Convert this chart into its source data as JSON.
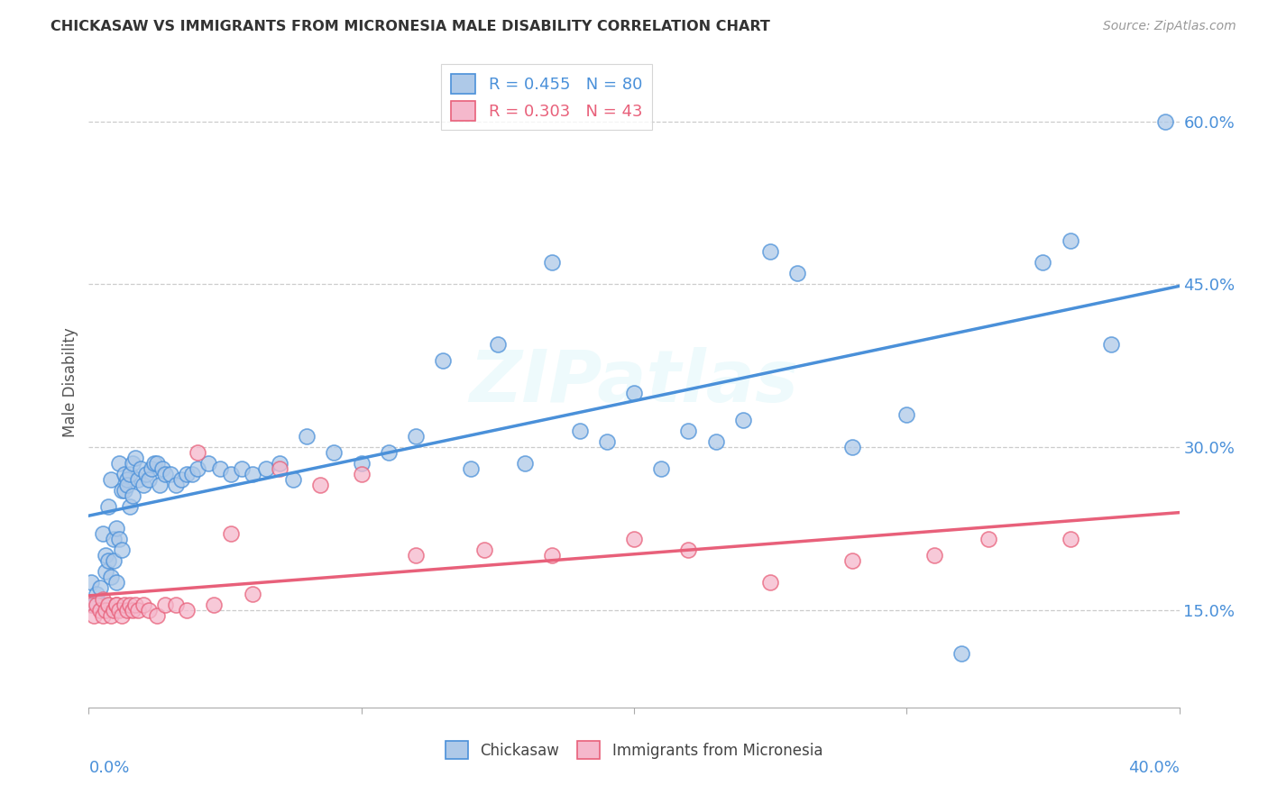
{
  "title": "CHICKASAW VS IMMIGRANTS FROM MICRONESIA MALE DISABILITY CORRELATION CHART",
  "source": "Source: ZipAtlas.com",
  "ylabel": "Male Disability",
  "x_label_start": "0.0%",
  "x_label_end": "40.0%",
  "y_ticks": [
    0.15,
    0.3,
    0.45,
    0.6
  ],
  "y_tick_labels": [
    "15.0%",
    "30.0%",
    "45.0%",
    "60.0%"
  ],
  "x_min": 0.0,
  "x_max": 0.4,
  "y_min": 0.06,
  "y_max": 0.66,
  "chickasaw_color": "#aec9e8",
  "micronesia_color": "#f5b8cc",
  "chickasaw_line_color": "#4a90d9",
  "micronesia_line_color": "#e8607a",
  "R_chickasaw": 0.455,
  "N_chickasaw": 80,
  "R_micronesia": 0.303,
  "N_micronesia": 43,
  "watermark": "ZIPatlas",
  "legend_labels": [
    "Chickasaw",
    "Immigrants from Micronesia"
  ],
  "chickasaw_x": [
    0.001,
    0.002,
    0.003,
    0.004,
    0.005,
    0.005,
    0.006,
    0.006,
    0.007,
    0.007,
    0.008,
    0.008,
    0.009,
    0.009,
    0.01,
    0.01,
    0.011,
    0.011,
    0.012,
    0.012,
    0.013,
    0.013,
    0.014,
    0.014,
    0.015,
    0.015,
    0.016,
    0.016,
    0.017,
    0.018,
    0.019,
    0.02,
    0.021,
    0.022,
    0.023,
    0.024,
    0.025,
    0.026,
    0.027,
    0.028,
    0.03,
    0.032,
    0.034,
    0.036,
    0.038,
    0.04,
    0.044,
    0.048,
    0.052,
    0.056,
    0.06,
    0.065,
    0.07,
    0.075,
    0.08,
    0.09,
    0.1,
    0.11,
    0.12,
    0.13,
    0.14,
    0.15,
    0.16,
    0.17,
    0.18,
    0.19,
    0.2,
    0.21,
    0.22,
    0.23,
    0.24,
    0.25,
    0.26,
    0.28,
    0.3,
    0.32,
    0.35,
    0.36,
    0.375,
    0.395
  ],
  "chickasaw_y": [
    0.175,
    0.155,
    0.165,
    0.17,
    0.155,
    0.22,
    0.185,
    0.2,
    0.195,
    0.245,
    0.18,
    0.27,
    0.195,
    0.215,
    0.175,
    0.225,
    0.215,
    0.285,
    0.205,
    0.26,
    0.26,
    0.275,
    0.27,
    0.265,
    0.245,
    0.275,
    0.255,
    0.285,
    0.29,
    0.27,
    0.28,
    0.265,
    0.275,
    0.27,
    0.28,
    0.285,
    0.285,
    0.265,
    0.28,
    0.275,
    0.275,
    0.265,
    0.27,
    0.275,
    0.275,
    0.28,
    0.285,
    0.28,
    0.275,
    0.28,
    0.275,
    0.28,
    0.285,
    0.27,
    0.31,
    0.295,
    0.285,
    0.295,
    0.31,
    0.38,
    0.28,
    0.395,
    0.285,
    0.47,
    0.315,
    0.305,
    0.35,
    0.28,
    0.315,
    0.305,
    0.325,
    0.48,
    0.46,
    0.3,
    0.33,
    0.11,
    0.47,
    0.49,
    0.395,
    0.6
  ],
  "micronesia_x": [
    0.001,
    0.002,
    0.003,
    0.004,
    0.005,
    0.005,
    0.006,
    0.007,
    0.008,
    0.009,
    0.01,
    0.01,
    0.011,
    0.012,
    0.013,
    0.014,
    0.015,
    0.016,
    0.017,
    0.018,
    0.02,
    0.022,
    0.025,
    0.028,
    0.032,
    0.036,
    0.04,
    0.046,
    0.052,
    0.06,
    0.07,
    0.085,
    0.1,
    0.12,
    0.145,
    0.17,
    0.2,
    0.22,
    0.25,
    0.28,
    0.31,
    0.33,
    0.36
  ],
  "micronesia_y": [
    0.155,
    0.145,
    0.155,
    0.15,
    0.145,
    0.16,
    0.15,
    0.155,
    0.145,
    0.15,
    0.155,
    0.155,
    0.15,
    0.145,
    0.155,
    0.15,
    0.155,
    0.15,
    0.155,
    0.15,
    0.155,
    0.15,
    0.145,
    0.155,
    0.155,
    0.15,
    0.295,
    0.155,
    0.22,
    0.165,
    0.28,
    0.265,
    0.275,
    0.2,
    0.205,
    0.2,
    0.215,
    0.205,
    0.175,
    0.195,
    0.2,
    0.215,
    0.215
  ]
}
